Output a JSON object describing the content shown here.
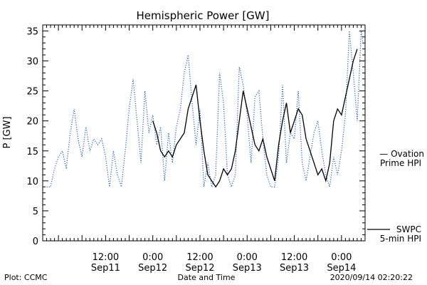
{
  "chart_data": {
    "type": "line",
    "title": "Hemispheric Power [GW]",
    "ylabel": "P [GW]",
    "xlabel": "Date and Time",
    "ylim": [
      0,
      36
    ],
    "yticks": [
      0,
      5,
      10,
      15,
      20,
      25,
      30,
      35
    ],
    "xlim": [
      "2020-09-10T20:00",
      "2020-09-14T06:00"
    ],
    "xticks": [
      {
        "t": "2020-09-11T12:00",
        "time": "12:00",
        "date": "Sep11"
      },
      {
        "t": "2020-09-12T00:00",
        "time": "0:00",
        "date": "Sep12"
      },
      {
        "t": "2020-09-12T12:00",
        "time": "12:00",
        "date": "Sep12"
      },
      {
        "t": "2020-09-13T00:00",
        "time": "0:00",
        "date": "Sep13"
      },
      {
        "t": "2020-09-13T12:00",
        "time": "12:00",
        "date": "Sep13"
      },
      {
        "t": "2020-09-14T00:00",
        "time": "0:00",
        "date": "Sep14"
      }
    ],
    "series": [
      {
        "name": "Ovation Prime HPI",
        "legend_lines": [
          "— Ovation",
          "Prime HPI"
        ],
        "color": "#1f5fbf",
        "style": "dotted",
        "points": [
          [
            "2020-09-10T21:00",
            9
          ],
          [
            "2020-09-10T22:00",
            9
          ],
          [
            "2020-09-10T23:00",
            12
          ],
          [
            "2020-09-11T00:00",
            14
          ],
          [
            "2020-09-11T01:00",
            15
          ],
          [
            "2020-09-11T02:00",
            12
          ],
          [
            "2020-09-11T03:00",
            18
          ],
          [
            "2020-09-11T04:00",
            22
          ],
          [
            "2020-09-11T05:00",
            17
          ],
          [
            "2020-09-11T06:00",
            14
          ],
          [
            "2020-09-11T07:00",
            19
          ],
          [
            "2020-09-11T08:00",
            15
          ],
          [
            "2020-09-11T09:00",
            17
          ],
          [
            "2020-09-11T10:00",
            16
          ],
          [
            "2020-09-11T11:00",
            17
          ],
          [
            "2020-09-11T12:00",
            14
          ],
          [
            "2020-09-11T13:00",
            9
          ],
          [
            "2020-09-11T14:00",
            15
          ],
          [
            "2020-09-11T15:00",
            11
          ],
          [
            "2020-09-11T16:00",
            9
          ],
          [
            "2020-09-11T17:00",
            15
          ],
          [
            "2020-09-11T18:00",
            22
          ],
          [
            "2020-09-11T19:00",
            27
          ],
          [
            "2020-09-11T20:00",
            20
          ],
          [
            "2020-09-11T21:00",
            13
          ],
          [
            "2020-09-11T22:00",
            25
          ],
          [
            "2020-09-11T23:00",
            18
          ],
          [
            "2020-09-12T00:00",
            21
          ],
          [
            "2020-09-12T01:00",
            16
          ],
          [
            "2020-09-12T02:00",
            19
          ],
          [
            "2020-09-12T03:00",
            10
          ],
          [
            "2020-09-12T04:00",
            18
          ],
          [
            "2020-09-12T05:00",
            13
          ],
          [
            "2020-09-12T06:00",
            19
          ],
          [
            "2020-09-12T07:00",
            22
          ],
          [
            "2020-09-12T08:00",
            28
          ],
          [
            "2020-09-12T09:00",
            31
          ],
          [
            "2020-09-12T10:00",
            23
          ],
          [
            "2020-09-12T11:00",
            16
          ],
          [
            "2020-09-12T12:00",
            22
          ],
          [
            "2020-09-12T13:00",
            9
          ],
          [
            "2020-09-12T14:00",
            13
          ],
          [
            "2020-09-12T15:00",
            9
          ],
          [
            "2020-09-12T16:00",
            11
          ],
          [
            "2020-09-12T17:00",
            28
          ],
          [
            "2020-09-12T18:00",
            23
          ],
          [
            "2020-09-12T19:00",
            11
          ],
          [
            "2020-09-12T20:00",
            9
          ],
          [
            "2020-09-12T21:00",
            11
          ],
          [
            "2020-09-12T22:00",
            29
          ],
          [
            "2020-09-12T23:00",
            26
          ],
          [
            "2020-09-13T00:00",
            21
          ],
          [
            "2020-09-13T01:00",
            13
          ],
          [
            "2020-09-13T02:00",
            24
          ],
          [
            "2020-09-13T03:00",
            25
          ],
          [
            "2020-09-13T04:00",
            17
          ],
          [
            "2020-09-13T05:00",
            11
          ],
          [
            "2020-09-13T06:00",
            9
          ],
          [
            "2020-09-13T07:00",
            9
          ],
          [
            "2020-09-13T08:00",
            14
          ],
          [
            "2020-09-13T09:00",
            26
          ],
          [
            "2020-09-13T10:00",
            13
          ],
          [
            "2020-09-13T11:00",
            18
          ],
          [
            "2020-09-13T12:00",
            17
          ],
          [
            "2020-09-13T13:00",
            25
          ],
          [
            "2020-09-13T14:00",
            13
          ],
          [
            "2020-09-13T15:00",
            10
          ],
          [
            "2020-09-13T16:00",
            14
          ],
          [
            "2020-09-13T17:00",
            18
          ],
          [
            "2020-09-13T18:00",
            20
          ],
          [
            "2020-09-13T19:00",
            15
          ],
          [
            "2020-09-13T20:00",
            11
          ],
          [
            "2020-09-13T21:00",
            9
          ],
          [
            "2020-09-13T22:00",
            14
          ],
          [
            "2020-09-13T23:00",
            11
          ],
          [
            "2020-09-14T00:00",
            15
          ],
          [
            "2020-09-14T01:00",
            21
          ],
          [
            "2020-09-14T02:00",
            35
          ],
          [
            "2020-09-14T03:00",
            28
          ],
          [
            "2020-09-14T04:00",
            20
          ],
          [
            "2020-09-14T05:00",
            35
          ],
          [
            "2020-09-14T05:30",
            33
          ]
        ]
      },
      {
        "name": "SWPC 5-min HPI",
        "legend_lines": [
          "SWPC",
          "5-min HPI"
        ],
        "color": "#000000",
        "style": "solid",
        "points": [
          [
            "2020-09-12T00:00",
            20
          ],
          [
            "2020-09-12T01:00",
            18
          ],
          [
            "2020-09-12T02:00",
            15
          ],
          [
            "2020-09-12T03:00",
            14
          ],
          [
            "2020-09-12T04:00",
            15
          ],
          [
            "2020-09-12T05:00",
            14
          ],
          [
            "2020-09-12T06:00",
            16
          ],
          [
            "2020-09-12T07:00",
            17
          ],
          [
            "2020-09-12T08:00",
            18
          ],
          [
            "2020-09-12T09:00",
            22
          ],
          [
            "2020-09-12T10:00",
            24
          ],
          [
            "2020-09-12T11:00",
            26
          ],
          [
            "2020-09-12T12:00",
            20
          ],
          [
            "2020-09-12T13:00",
            15
          ],
          [
            "2020-09-12T14:00",
            11
          ],
          [
            "2020-09-12T15:00",
            10
          ],
          [
            "2020-09-12T16:00",
            9
          ],
          [
            "2020-09-12T17:00",
            10
          ],
          [
            "2020-09-12T18:00",
            12
          ],
          [
            "2020-09-12T19:00",
            11
          ],
          [
            "2020-09-12T20:00",
            12
          ],
          [
            "2020-09-12T21:00",
            15
          ],
          [
            "2020-09-12T22:00",
            20
          ],
          [
            "2020-09-12T23:00",
            25
          ],
          [
            "2020-09-13T00:00",
            22
          ],
          [
            "2020-09-13T01:00",
            19
          ],
          [
            "2020-09-13T02:00",
            16
          ],
          [
            "2020-09-13T03:00",
            15
          ],
          [
            "2020-09-13T04:00",
            17
          ],
          [
            "2020-09-13T05:00",
            14
          ],
          [
            "2020-09-13T06:00",
            12
          ],
          [
            "2020-09-13T07:00",
            10
          ],
          [
            "2020-09-13T08:00",
            16
          ],
          [
            "2020-09-13T09:00",
            20
          ],
          [
            "2020-09-13T10:00",
            23
          ],
          [
            "2020-09-13T11:00",
            18
          ],
          [
            "2020-09-13T12:00",
            20
          ],
          [
            "2020-09-13T13:00",
            22
          ],
          [
            "2020-09-13T14:00",
            21
          ],
          [
            "2020-09-13T15:00",
            17
          ],
          [
            "2020-09-13T16:00",
            15
          ],
          [
            "2020-09-13T17:00",
            13
          ],
          [
            "2020-09-13T18:00",
            11
          ],
          [
            "2020-09-13T19:00",
            12
          ],
          [
            "2020-09-13T20:00",
            10
          ],
          [
            "2020-09-13T21:00",
            13
          ],
          [
            "2020-09-13T22:00",
            20
          ],
          [
            "2020-09-13T23:00",
            22
          ],
          [
            "2020-09-14T00:00",
            21
          ],
          [
            "2020-09-14T01:00",
            24
          ],
          [
            "2020-09-14T02:00",
            27
          ],
          [
            "2020-09-14T03:00",
            30
          ],
          [
            "2020-09-14T04:00",
            32
          ]
        ]
      }
    ]
  },
  "footer": {
    "left": "Plot: CCMC",
    "center": "Date and Time",
    "right": "2020/09/14 02:20:22"
  }
}
